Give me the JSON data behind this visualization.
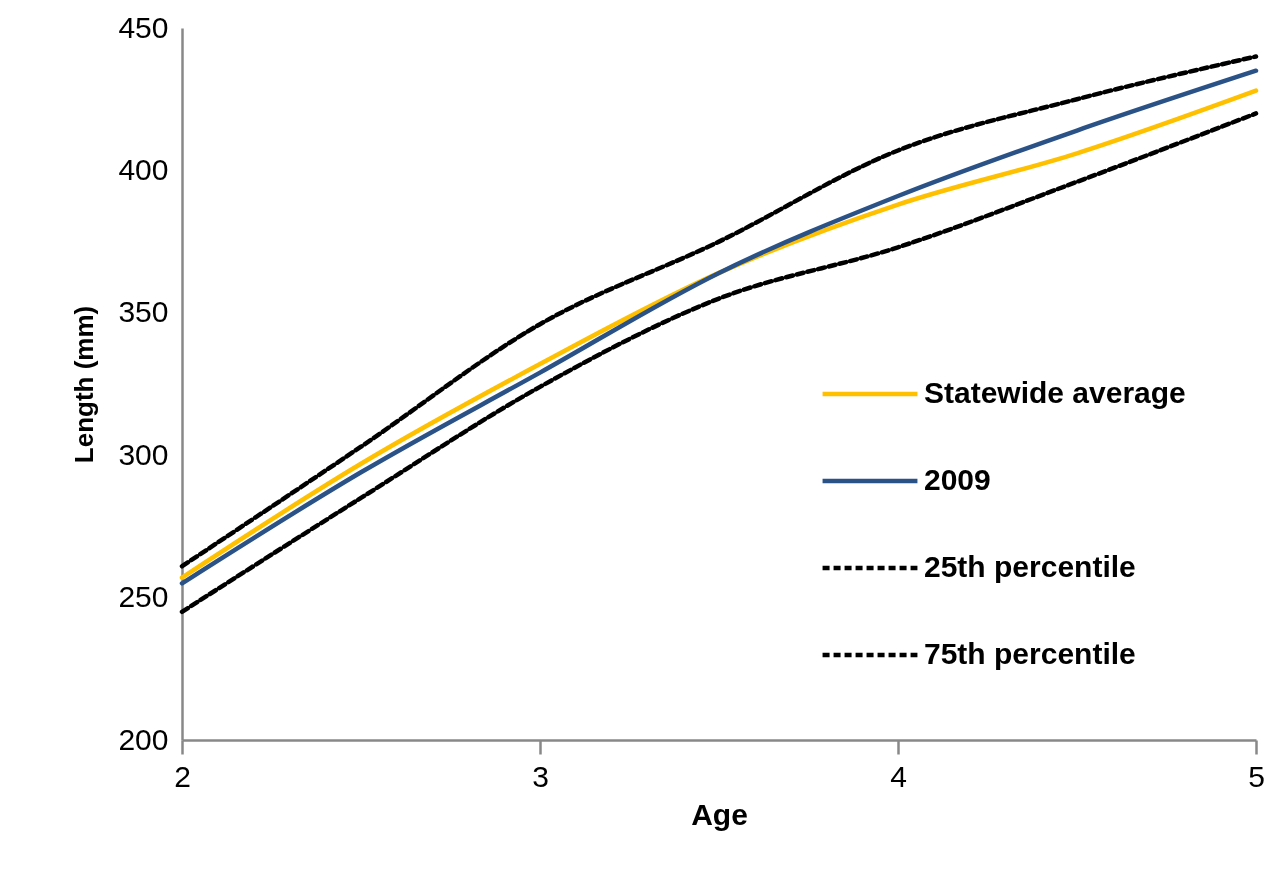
{
  "chart_data": {
    "type": "line",
    "xlabel": "Age",
    "ylabel": "Length (mm)",
    "x": [
      2,
      2.5,
      3,
      3.5,
      4,
      4.5,
      5
    ],
    "xlim": [
      2,
      5
    ],
    "xticks": [
      2,
      3,
      4,
      5
    ],
    "ylim": [
      200,
      450
    ],
    "yticks": [
      200,
      250,
      300,
      350,
      400,
      450
    ],
    "legend": "bottom right",
    "series": [
      {
        "name": "Statewide average",
        "color": "#ffc000",
        "line_style": "solid",
        "values": [
          257,
          297,
          332,
          364,
          388,
          406,
          428
        ]
      },
      {
        "name": "2009",
        "color": "#2a5287",
        "line_style": "solid",
        "values": [
          255,
          294,
          329,
          364,
          391,
          414,
          435
        ]
      },
      {
        "name": "25th percentile",
        "color": "#000000",
        "line_style": "dashed",
        "values": [
          245,
          285,
          324,
          355,
          373,
          396,
          420
        ]
      },
      {
        "name": "75th percentile",
        "color": "#000000",
        "line_style": "dashed",
        "values": [
          261,
          303,
          346,
          375,
          407,
          425,
          440
        ]
      }
    ]
  }
}
